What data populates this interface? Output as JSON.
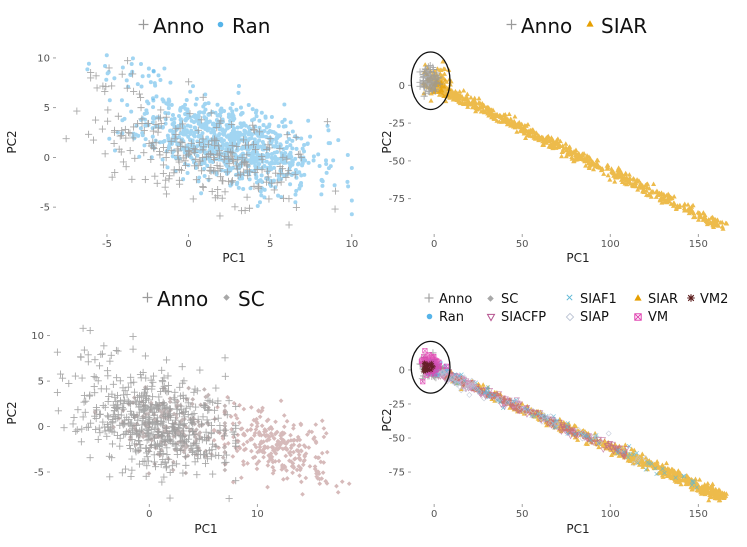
{
  "chart_data": [
    {
      "type": "scatter",
      "id": "p1",
      "xlabel": "PC1",
      "ylabel": "PC2",
      "xlim": [
        -8,
        10.5
      ],
      "ylim": [
        -7.5,
        11
      ],
      "xticks": [
        -5,
        0,
        5,
        10
      ],
      "xtick_labels": [
        "-5",
        "0",
        "5",
        "10"
      ],
      "yticks": [
        -5,
        0,
        5,
        10
      ],
      "ytick_labels": [
        "-5",
        "0",
        "5",
        "10"
      ],
      "legend_position": "top",
      "series": [
        {
          "name": "Anno",
          "marker": "plus",
          "color": "#9a9a9a"
        },
        {
          "name": "Ran",
          "marker": "circle",
          "color": "#56b4e9"
        }
      ],
      "clouds": [
        {
          "series": "Ran",
          "n": 900,
          "cx": 2.5,
          "cy": 1.5,
          "sx": 2.6,
          "sy": 1.9,
          "tilt": -0.35,
          "xmin": -5.5,
          "xmax": 10,
          "seed": 11
        },
        {
          "series": "Ran",
          "n": 30,
          "cx": -3.2,
          "cy": 8.5,
          "sx": 1.6,
          "sy": 0.9,
          "tilt": 0,
          "xmin": -6.2,
          "xmax": -0.5,
          "seed": 12
        },
        {
          "series": "Anno",
          "n": 260,
          "cx": 1.0,
          "cy": 0.0,
          "sx": 3.4,
          "sy": 2.2,
          "tilt": -0.3,
          "xmin": -7.5,
          "xmax": 9,
          "seed": 13
        },
        {
          "series": "Anno",
          "n": 14,
          "cx": -4.2,
          "cy": 8.0,
          "sx": 1.2,
          "sy": 1.0,
          "tilt": 0,
          "xmin": -6,
          "xmax": -1.5,
          "seed": 14
        }
      ]
    },
    {
      "type": "scatter",
      "id": "p2",
      "xlabel": "PC1",
      "ylabel": "PC2",
      "xlim": [
        -12,
        168
      ],
      "ylim": [
        -97,
        22
      ],
      "xticks": [
        0,
        50,
        100,
        150
      ],
      "xtick_labels": [
        "0",
        "50",
        "100",
        "150"
      ],
      "yticks": [
        0,
        -25,
        -50,
        -75
      ],
      "ytick_labels": [
        "0",
        "-25",
        "-50",
        "-75"
      ],
      "legend_position": "top",
      "highlight_ellipse": {
        "cx": -2,
        "cy": 3,
        "rx": 11,
        "ry": 19
      },
      "series": [
        {
          "name": "Anno",
          "marker": "plus",
          "color": "#9a9a9a"
        },
        {
          "name": "SIAR",
          "marker": "triangle",
          "color": "#e69f00"
        }
      ],
      "clouds": [
        {
          "series": "SIAR",
          "n": 700,
          "line": [
            [
              0,
              0
            ],
            [
              165,
              -94
            ]
          ],
          "spread": 1.8,
          "bias": 1.6,
          "seed": 21
        },
        {
          "series": "SIAR",
          "n": 80,
          "cx": 1,
          "cy": 3,
          "sx": 3.5,
          "sy": 5,
          "tilt": 0,
          "xmin": -6,
          "xmax": 10,
          "seed": 22
        },
        {
          "series": "Anno",
          "n": 80,
          "cx": -3,
          "cy": 3,
          "sx": 2.5,
          "sy": 4,
          "tilt": 0,
          "xmin": -8,
          "xmax": 6,
          "seed": 23
        }
      ]
    },
    {
      "type": "scatter",
      "id": "p3",
      "xlabel": "PC1",
      "ylabel": "PC2",
      "xlim": [
        -9,
        19.5
      ],
      "ylim": [
        -8.3,
        11.5
      ],
      "xticks": [
        0,
        10
      ],
      "xtick_labels": [
        "0",
        "10"
      ],
      "yticks": [
        -5,
        0,
        5,
        10
      ],
      "ytick_labels": [
        "-5",
        "0",
        "5",
        "10"
      ],
      "legend_position": "top",
      "series": [
        {
          "name": "Anno",
          "marker": "plus",
          "color": "#9a9a9a"
        },
        {
          "name": "SC",
          "marker": "diamond",
          "color": "#a8a8a8"
        }
      ],
      "clouds": [
        {
          "series": "SC",
          "n": 280,
          "cx": 11.5,
          "cy": -2.2,
          "sx": 2.8,
          "sy": 1.8,
          "tilt": -0.35,
          "xmin": 6,
          "xmax": 18.5,
          "color": "#c9a3a3",
          "seed": 31
        },
        {
          "series": "SC",
          "n": 200,
          "cx": 2,
          "cy": 0,
          "sx": 3,
          "sy": 2,
          "tilt": -0.2,
          "xmin": -5,
          "xmax": 7,
          "color": "#b0a0a0",
          "seed": 32
        },
        {
          "series": "Anno",
          "n": 520,
          "cx": 0.5,
          "cy": 0.5,
          "sx": 3.5,
          "sy": 2.6,
          "tilt": -0.25,
          "xmin": -8.5,
          "xmax": 8,
          "seed": 33
        },
        {
          "series": "Anno",
          "n": 16,
          "cx": -4.5,
          "cy": 8.5,
          "sx": 1.5,
          "sy": 1.2,
          "tilt": 0,
          "xmin": -7,
          "xmax": -1.5,
          "seed": 34
        }
      ]
    },
    {
      "type": "scatter",
      "id": "p4",
      "xlabel": "PC1",
      "ylabel": "PC2",
      "xlim": [
        -12,
        168
      ],
      "ylim": [
        -97,
        22
      ],
      "xticks": [
        0,
        50,
        100,
        150
      ],
      "xtick_labels": [
        "0",
        "50",
        "100",
        "150"
      ],
      "yticks": [
        0,
        -25,
        -50,
        -75
      ],
      "ytick_labels": [
        "0",
        "-25",
        "-50",
        "-75"
      ],
      "legend_position": "top",
      "highlight_ellipse": {
        "cx": -2,
        "cy": 2,
        "rx": 11,
        "ry": 19
      },
      "series": [
        {
          "name": "Anno",
          "marker": "plus",
          "color": "#9a9a9a"
        },
        {
          "name": "Ran",
          "marker": "circle",
          "color": "#56b4e9"
        },
        {
          "name": "SC",
          "marker": "diamond",
          "color": "#a8a8a8"
        },
        {
          "name": "SIACFP",
          "marker": "triangle-down",
          "color": "#b5538f"
        },
        {
          "name": "SIAF1",
          "marker": "cross",
          "color": "#5fb8d6"
        },
        {
          "name": "SIAP",
          "marker": "diamond-open",
          "color": "#bcc4d4"
        },
        {
          "name": "SIAR",
          "marker": "triangle",
          "color": "#e69f00"
        },
        {
          "name": "VM",
          "marker": "square-x",
          "color": "#e040b0"
        },
        {
          "name": "VM2",
          "marker": "star",
          "color": "#5a1a1a"
        }
      ],
      "clouds": [
        {
          "series": "SIAR",
          "n": 600,
          "line": [
            [
              0,
              0
            ],
            [
              165,
              -94
            ]
          ],
          "spread": 1.9,
          "bias": 0.6,
          "seed": 41
        },
        {
          "series": "SIACFP",
          "n": 520,
          "line": [
            [
              0,
              0
            ],
            [
              110,
              -63
            ]
          ],
          "spread": 1.5,
          "bias": 2.8,
          "seed": 42
        },
        {
          "series": "SIAF1",
          "n": 90,
          "line": [
            [
              0,
              0
            ],
            [
              150,
              -85
            ]
          ],
          "spread": 2.2,
          "bias": 1.2,
          "seed": 43
        },
        {
          "series": "SIAP",
          "n": 60,
          "line": [
            [
              0,
              0
            ],
            [
              120,
              -68
            ]
          ],
          "spread": 2.4,
          "bias": 1.5,
          "seed": 44
        },
        {
          "series": "Anno",
          "n": 60,
          "cx": -3,
          "cy": 2,
          "sx": 2.5,
          "sy": 4,
          "tilt": 0,
          "xmin": -8,
          "xmax": 6,
          "seed": 45
        },
        {
          "series": "Ran",
          "n": 40,
          "cx": 0,
          "cy": 2,
          "sx": 2.5,
          "sy": 3,
          "tilt": 0,
          "xmin": -6,
          "xmax": 8,
          "seed": 46
        },
        {
          "series": "VM",
          "n": 70,
          "cx": -2,
          "cy": 4,
          "sx": 2.8,
          "sy": 4,
          "tilt": 0,
          "xmin": -8,
          "xmax": 7,
          "seed": 47
        },
        {
          "series": "VM2",
          "n": 25,
          "cx": -4,
          "cy": 2,
          "sx": 1.5,
          "sy": 1.5,
          "tilt": 0,
          "xmin": -8,
          "xmax": 2,
          "seed": 48
        }
      ]
    }
  ]
}
